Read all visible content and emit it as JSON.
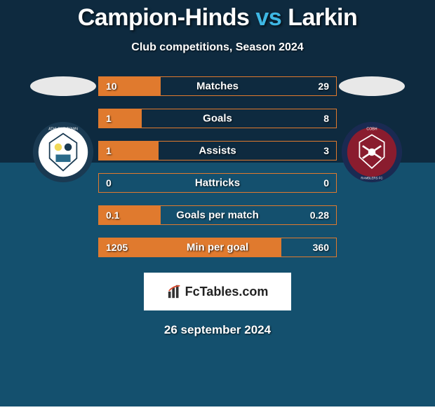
{
  "background": {
    "top_color": "#0e2a3f",
    "bottom_color": "#14506e",
    "split_ratio": 0.4
  },
  "title": {
    "left_name": "Campion-Hinds",
    "vs": "vs",
    "right_name": "Larkin",
    "left_color": "#ffffff",
    "vs_color": "#3eb7e4",
    "right_color": "#ffffff",
    "fontsize": 34
  },
  "subtitle": "Club competitions, Season 2024",
  "players": {
    "left": {
      "ellipse_color": "#e8e8e8",
      "crest_bg": "#ffffff",
      "crest_ring": "#1a3a52",
      "crest_text": "ATHLONE TOWN",
      "crest_text_color": "#1a3a52",
      "crest_inner_color": "#f0d858"
    },
    "right": {
      "ellipse_color": "#e8e8e8",
      "crest_bg": "#8a1c2e",
      "crest_ring": "#1a2a52",
      "crest_text": "COBH RAMBLERS FC",
      "crest_text_color": "#ffffff",
      "crest_inner_color": "#ffffff"
    }
  },
  "bars": {
    "border_color": "#e07a2e",
    "fill_left_color": "#e07a2e",
    "fill_right_color": "transparent",
    "label_fontsize": 15,
    "value_fontsize": 14,
    "height": 28,
    "gap": 18,
    "rows": [
      {
        "label": "Matches",
        "left": "10",
        "right": "29",
        "left_ratio": 0.26
      },
      {
        "label": "Goals",
        "left": "1",
        "right": "8",
        "left_ratio": 0.18
      },
      {
        "label": "Assists",
        "left": "1",
        "right": "3",
        "left_ratio": 0.25
      },
      {
        "label": "Hattricks",
        "left": "0",
        "right": "0",
        "left_ratio": 0.0
      },
      {
        "label": "Goals per match",
        "left": "0.1",
        "right": "0.28",
        "left_ratio": 0.26
      },
      {
        "label": "Min per goal",
        "left": "1205",
        "right": "360",
        "left_ratio": 0.77
      }
    ]
  },
  "watermark": {
    "text": "FcTables.com",
    "bg": "#ffffff",
    "text_color": "#222222",
    "icon_bar_color": "#333333",
    "icon_accent_color": "#d94a2e"
  },
  "date": "26 september 2024"
}
